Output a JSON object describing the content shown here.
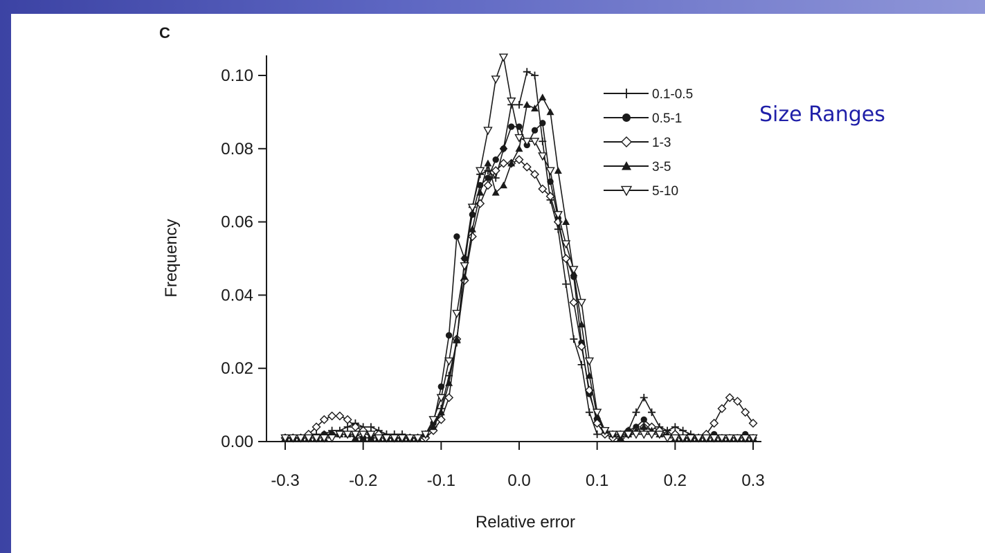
{
  "slide": {
    "side_label": "Size Ranges",
    "colors": {
      "background_blue": "#5d66c2",
      "side_label": "#1f1fa8",
      "ink": "#1a1a1a"
    }
  },
  "chart_data": {
    "type": "line",
    "panel_label": "C",
    "xlabel": "Relative error",
    "ylabel": "Frequency",
    "xlim": [
      -0.3,
      0.3
    ],
    "ylim": [
      0.0,
      0.1
    ],
    "xticks": [
      "-0.3",
      "-0.2",
      "-0.1",
      "0.0",
      "0.1",
      "0.2",
      "0.3"
    ],
    "xtick_values": [
      -0.3,
      -0.2,
      -0.1,
      0.0,
      0.1,
      0.2,
      0.3
    ],
    "yticks": [
      "0.00",
      "0.02",
      "0.04",
      "0.06",
      "0.08",
      "0.10"
    ],
    "ytick_values": [
      0.0,
      0.02,
      0.04,
      0.06,
      0.08,
      0.1
    ],
    "legend_position": "top-right",
    "grid": false,
    "x": [
      -0.3,
      -0.29,
      -0.28,
      -0.27,
      -0.26,
      -0.25,
      -0.24,
      -0.23,
      -0.22,
      -0.21,
      -0.2,
      -0.19,
      -0.18,
      -0.17,
      -0.16,
      -0.15,
      -0.14,
      -0.13,
      -0.12,
      -0.11,
      -0.1,
      -0.09,
      -0.08,
      -0.07,
      -0.06,
      -0.05,
      -0.04,
      -0.03,
      -0.02,
      -0.01,
      0.0,
      0.01,
      0.02,
      0.03,
      0.04,
      0.05,
      0.06,
      0.07,
      0.08,
      0.09,
      0.1,
      0.11,
      0.12,
      0.13,
      0.14,
      0.15,
      0.16,
      0.17,
      0.18,
      0.19,
      0.2,
      0.21,
      0.22,
      0.23,
      0.24,
      0.25,
      0.26,
      0.27,
      0.28,
      0.29,
      0.3
    ],
    "series": [
      {
        "name": "0.1-0.5",
        "marker": "plus",
        "values": [
          0.001,
          0.001,
          0.001,
          0.001,
          0.002,
          0.002,
          0.003,
          0.003,
          0.004,
          0.005,
          0.004,
          0.004,
          0.003,
          0.002,
          0.002,
          0.002,
          0.001,
          0.001,
          0.002,
          0.004,
          0.009,
          0.018,
          0.027,
          0.05,
          0.064,
          0.073,
          0.074,
          0.072,
          0.08,
          0.092,
          0.092,
          0.101,
          0.1,
          0.082,
          0.066,
          0.058,
          0.043,
          0.028,
          0.021,
          0.008,
          0.002,
          0.002,
          0.002,
          0.002,
          0.003,
          0.008,
          0.012,
          0.008,
          0.004,
          0.003,
          0.004,
          0.003,
          0.002,
          0.001,
          0.001,
          0.001,
          0.001,
          0.001,
          0.001,
          0.001,
          0.001
        ]
      },
      {
        "name": "0.5-1",
        "marker": "circle",
        "values": [
          0.001,
          0.001,
          0.001,
          0.001,
          0.001,
          0.002,
          0.002,
          0.002,
          0.002,
          0.002,
          0.001,
          0.001,
          0.001,
          0.001,
          0.001,
          0.001,
          0.001,
          0.001,
          0.002,
          0.005,
          0.015,
          0.029,
          0.056,
          0.05,
          0.062,
          0.07,
          0.072,
          0.077,
          0.08,
          0.086,
          0.086,
          0.081,
          0.085,
          0.087,
          0.071,
          0.061,
          0.05,
          0.045,
          0.027,
          0.013,
          0.006,
          0.003,
          0.002,
          0.002,
          0.003,
          0.004,
          0.006,
          0.004,
          0.003,
          0.002,
          0.002,
          0.001,
          0.001,
          0.001,
          0.001,
          0.002,
          0.001,
          0.001,
          0.001,
          0.002,
          0.001
        ]
      },
      {
        "name": "1-3",
        "marker": "diamond",
        "values": [
          0.001,
          0.001,
          0.001,
          0.002,
          0.004,
          0.006,
          0.007,
          0.007,
          0.006,
          0.004,
          0.003,
          0.002,
          0.002,
          0.001,
          0.001,
          0.001,
          0.001,
          0.001,
          0.001,
          0.003,
          0.006,
          0.012,
          0.028,
          0.044,
          0.056,
          0.065,
          0.07,
          0.074,
          0.076,
          0.076,
          0.077,
          0.075,
          0.073,
          0.069,
          0.067,
          0.06,
          0.05,
          0.038,
          0.026,
          0.014,
          0.005,
          0.002,
          0.001,
          0.001,
          0.002,
          0.003,
          0.004,
          0.004,
          0.003,
          0.002,
          0.002,
          0.001,
          0.001,
          0.001,
          0.002,
          0.005,
          0.009,
          0.012,
          0.011,
          0.008,
          0.005
        ]
      },
      {
        "name": "3-5",
        "marker": "triangle-up",
        "values": [
          0.001,
          0.001,
          0.001,
          0.001,
          0.001,
          0.001,
          0.002,
          0.002,
          0.002,
          0.001,
          0.001,
          0.001,
          0.001,
          0.001,
          0.001,
          0.001,
          0.001,
          0.001,
          0.002,
          0.004,
          0.008,
          0.016,
          0.028,
          0.045,
          0.058,
          0.068,
          0.076,
          0.068,
          0.07,
          0.076,
          0.08,
          0.092,
          0.091,
          0.094,
          0.09,
          0.074,
          0.06,
          0.046,
          0.032,
          0.018,
          0.007,
          0.003,
          0.002,
          0.001,
          0.002,
          0.003,
          0.004,
          0.003,
          0.002,
          0.002,
          0.001,
          0.001,
          0.001,
          0.001,
          0.001,
          0.001,
          0.001,
          0.001,
          0.001,
          0.001,
          0.001
        ]
      },
      {
        "name": "5-10",
        "marker": "triangle-down",
        "values": [
          0.001,
          0.001,
          0.001,
          0.001,
          0.001,
          0.001,
          0.001,
          0.002,
          0.002,
          0.002,
          0.002,
          0.002,
          0.001,
          0.001,
          0.001,
          0.001,
          0.001,
          0.001,
          0.002,
          0.006,
          0.012,
          0.022,
          0.035,
          0.048,
          0.064,
          0.074,
          0.085,
          0.099,
          0.105,
          0.093,
          0.083,
          0.082,
          0.082,
          0.078,
          0.074,
          0.062,
          0.054,
          0.047,
          0.038,
          0.022,
          0.008,
          0.003,
          0.002,
          0.002,
          0.002,
          0.002,
          0.002,
          0.002,
          0.002,
          0.001,
          0.001,
          0.001,
          0.001,
          0.001,
          0.001,
          0.001,
          0.001,
          0.001,
          0.001,
          0.001,
          0.001
        ]
      }
    ]
  }
}
